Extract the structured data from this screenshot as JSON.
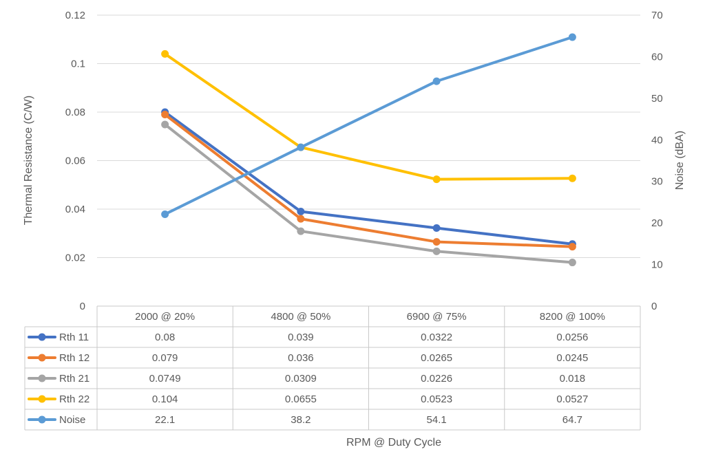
{
  "chart_data": {
    "type": "line",
    "categories": [
      "2000 @ 20%",
      "4800 @ 50%",
      "6900 @ 75%",
      "8200 @ 100%"
    ],
    "series": [
      {
        "name": "Rth 11",
        "axis": "left",
        "color": "#4472C4",
        "values": [
          0.08,
          0.039,
          0.0322,
          0.0256
        ],
        "display": [
          "0.08",
          "0.039",
          "0.0322",
          "0.0256"
        ]
      },
      {
        "name": "Rth 12",
        "axis": "left",
        "color": "#ED7D31",
        "values": [
          0.079,
          0.036,
          0.0265,
          0.0245
        ],
        "display": [
          "0.079",
          "0.036",
          "0.0265",
          "0.0245"
        ]
      },
      {
        "name": "Rth 21",
        "axis": "left",
        "color": "#A5A5A5",
        "values": [
          0.0749,
          0.0309,
          0.0226,
          0.018
        ],
        "display": [
          "0.0749",
          "0.0309",
          "0.0226",
          "0.018"
        ]
      },
      {
        "name": "Rth 22",
        "axis": "left",
        "color": "#FFC000",
        "values": [
          0.104,
          0.0655,
          0.0523,
          0.0527
        ],
        "display": [
          "0.104",
          "0.0655",
          "0.0523",
          "0.0527"
        ]
      },
      {
        "name": "Noise",
        "axis": "right",
        "color": "#5B9BD5",
        "values": [
          22.1,
          38.2,
          54.1,
          64.7
        ],
        "display": [
          "22.1",
          "38.2",
          "54.1",
          "64.7"
        ]
      }
    ],
    "y_left": {
      "label": "Thermal Resistance (C/W)",
      "lim": [
        0,
        0.12
      ],
      "ticks": [
        0,
        0.02,
        0.04,
        0.06,
        0.08,
        0.1,
        0.12
      ],
      "tick_labels": [
        "0",
        "0.02",
        "0.04",
        "0.06",
        "0.08",
        "0.1",
        "0.12"
      ]
    },
    "y_right": {
      "label": "Noise (dBA)",
      "lim": [
        0,
        70
      ],
      "ticks": [
        0,
        10,
        20,
        30,
        40,
        50,
        60,
        70
      ],
      "tick_labels": [
        "0",
        "10",
        "20",
        "30",
        "40",
        "50",
        "60",
        "70"
      ]
    },
    "xlabel": "RPM @ Duty Cycle",
    "grid": true,
    "legend": "data-table"
  }
}
